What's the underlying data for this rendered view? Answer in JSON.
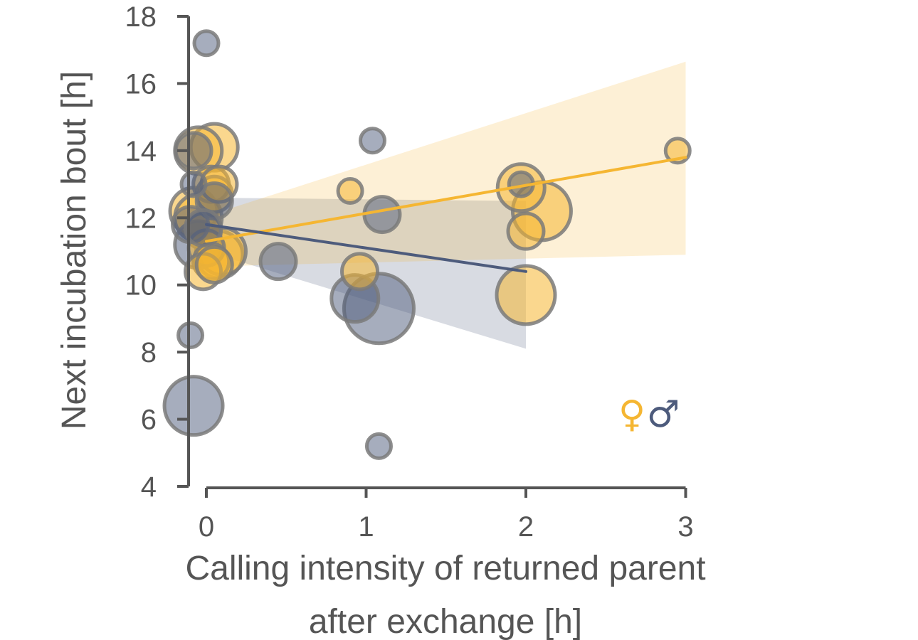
{
  "chart_data": {
    "type": "scatter",
    "xlabel_lines": [
      "Calling intensity of returned parent",
      "after exchange [h]"
    ],
    "ylabel": "Next incubation bout [h]",
    "xlim": [
      -0.1,
      3.0
    ],
    "ylim": [
      4,
      18
    ],
    "x_ticks": [
      "0",
      "1",
      "2",
      "3"
    ],
    "y_ticks": [
      "4",
      "6",
      "8",
      "10",
      "12",
      "14",
      "16",
      "18"
    ],
    "legend": {
      "female_symbol": "♀",
      "male_symbol": "♂",
      "placement": "bottom-right"
    },
    "colors": {
      "female": "#F5B632",
      "male": "#4D5B7C",
      "point_edge": "#7A7A7A",
      "axis": "#555555"
    },
    "series": [
      {
        "key": "female",
        "points": [
          {
            "x": -0.08,
            "y": 12.2,
            "size": 3
          },
          {
            "x": -0.05,
            "y": 12.0,
            "size": 3
          },
          {
            "x": -0.02,
            "y": 11.6,
            "size": 2
          },
          {
            "x": 0.0,
            "y": 11.1,
            "size": 2
          },
          {
            "x": 0.03,
            "y": 10.7,
            "size": 2
          },
          {
            "x": -0.02,
            "y": 10.4,
            "size": 2
          },
          {
            "x": 0.05,
            "y": 10.6,
            "size": 2
          },
          {
            "x": 0.08,
            "y": 10.9,
            "size": 3
          },
          {
            "x": 0.1,
            "y": 11.0,
            "size": 3
          },
          {
            "x": 0.03,
            "y": 13.0,
            "size": 2
          },
          {
            "x": 0.05,
            "y": 12.7,
            "size": 2
          },
          {
            "x": 0.08,
            "y": 13.0,
            "size": 2
          },
          {
            "x": 0.05,
            "y": 14.1,
            "size": 3
          },
          {
            "x": -0.05,
            "y": 14.0,
            "size": 3
          },
          {
            "x": 0.9,
            "y": 12.8,
            "size": 1
          },
          {
            "x": 0.96,
            "y": 10.4,
            "size": 2
          },
          {
            "x": 1.97,
            "y": 12.9,
            "size": 3
          },
          {
            "x": 2.0,
            "y": 11.6,
            "size": 2
          },
          {
            "x": 2.1,
            "y": 12.2,
            "size": 4
          },
          {
            "x": 2.0,
            "y": 9.7,
            "size": 4
          },
          {
            "x": 2.95,
            "y": 14.0,
            "size": 1
          }
        ],
        "fit": {
          "x": [
            0.0,
            3.0
          ],
          "y": [
            11.3,
            13.8
          ]
        },
        "band": {
          "x": [
            0.0,
            3.0
          ],
          "lower": [
            10.55,
            10.9
          ],
          "upper": [
            12.05,
            16.65
          ]
        }
      },
      {
        "key": "male",
        "points": [
          {
            "x": 0.0,
            "y": 17.2,
            "size": 1
          },
          {
            "x": -0.08,
            "y": 14.0,
            "size": 2
          },
          {
            "x": -0.08,
            "y": 13.0,
            "size": 1
          },
          {
            "x": 0.05,
            "y": 12.5,
            "size": 2
          },
          {
            "x": -0.1,
            "y": 11.8,
            "size": 2
          },
          {
            "x": -0.05,
            "y": 11.2,
            "size": 3
          },
          {
            "x": -0.02,
            "y": 11.7,
            "size": 2
          },
          {
            "x": -0.1,
            "y": 8.5,
            "size": 1
          },
          {
            "x": -0.08,
            "y": 6.4,
            "size": 4
          },
          {
            "x": 0.45,
            "y": 10.7,
            "size": 2
          },
          {
            "x": 1.04,
            "y": 14.3,
            "size": 1
          },
          {
            "x": 1.1,
            "y": 12.1,
            "size": 2
          },
          {
            "x": 0.93,
            "y": 9.6,
            "size": 3
          },
          {
            "x": 1.08,
            "y": 9.3,
            "size": 5
          },
          {
            "x": 1.08,
            "y": 5.2,
            "size": 1
          },
          {
            "x": 1.97,
            "y": 13.0,
            "size": 1
          }
        ],
        "fit": {
          "x": [
            0.0,
            2.0
          ],
          "y": [
            11.8,
            10.4
          ]
        },
        "band": {
          "x": [
            0.0,
            2.0
          ],
          "lower": [
            11.0,
            8.1
          ],
          "upper": [
            12.6,
            12.5
          ]
        }
      }
    ]
  }
}
